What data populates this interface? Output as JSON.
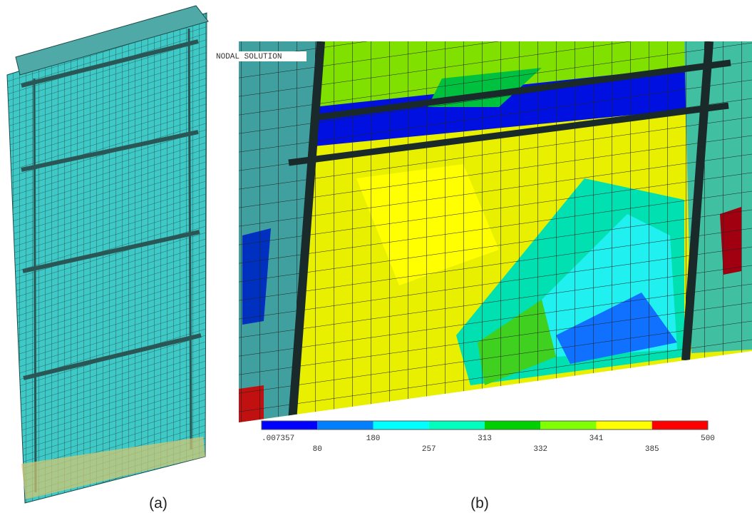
{
  "figure": {
    "panels": [
      {
        "label": "(a)"
      },
      {
        "label": "(b)",
        "title": "NODAL SOLUTION",
        "colorbar": {
          "labels": [
            ".007357",
            "80",
            "180",
            "257",
            "313",
            "332",
            "341",
            "385",
            "500"
          ],
          "colors": [
            "#0000ff",
            "#0080ff",
            "#00ffff",
            "#00ffbf",
            "#00d000",
            "#80ff00",
            "#ffff00",
            "#ff0000"
          ]
        }
      }
    ]
  }
}
